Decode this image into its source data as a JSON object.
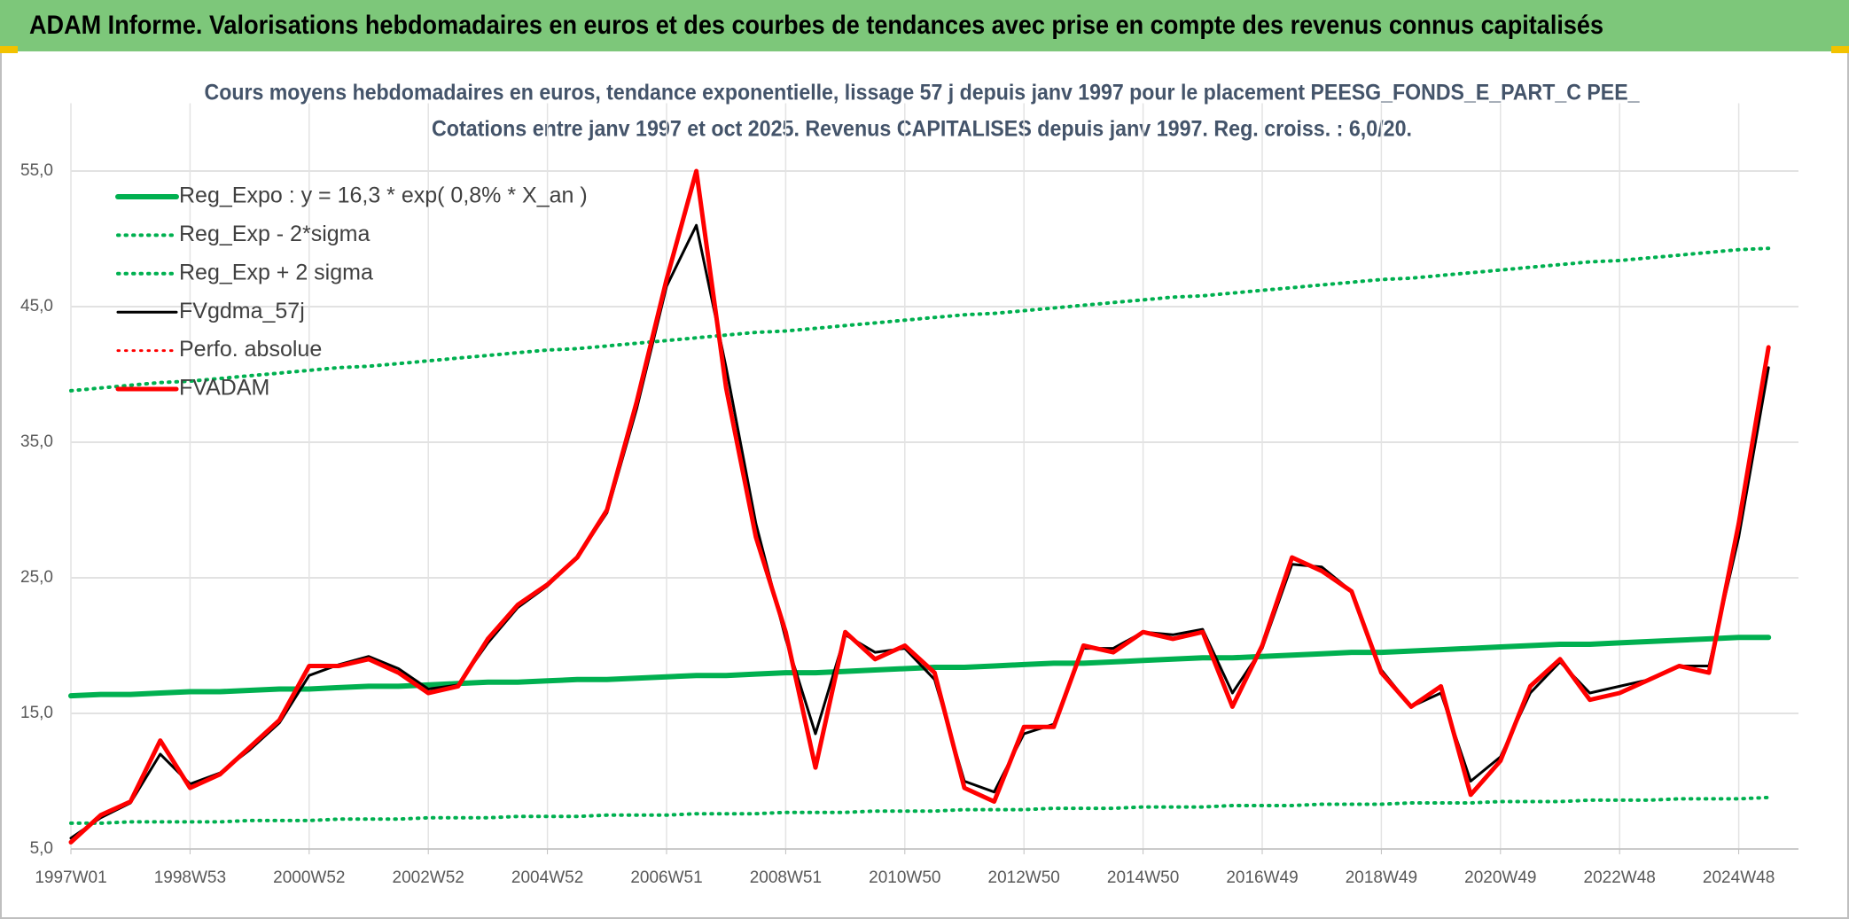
{
  "chart_data": {
    "type": "line",
    "title": "ADAM Informe. Valorisations hebdomadaires en euros et des courbes de tendances avec prise en compte des revenus connus capitalisés",
    "subtitle": [
      "Cours moyens hebdomadaires en euros, tendance exponentielle, lissage 57 j depuis janv 1997 pour le placement PEESG_FONDS_E_PART_C PEE_",
      "Cotations entre janv 1997 et oct 2025. Revenus CAPITALISES depuis janv 1997. Reg. croiss. : 6,0/20."
    ],
    "categories": [
      "1997W01",
      null,
      null,
      null,
      "1998W53",
      null,
      null,
      null,
      "2000W52",
      null,
      null,
      null,
      "2002W52",
      null,
      null,
      null,
      "2004W52",
      null,
      null,
      null,
      "2006W51",
      null,
      null,
      null,
      "2008W51",
      null,
      null,
      null,
      "2010W50",
      null,
      null,
      null,
      "2012W50",
      null,
      null,
      null,
      "2014W50",
      null,
      null,
      null,
      "2016W49",
      null,
      null,
      null,
      "2018W49",
      null,
      null,
      null,
      "2020W49",
      null,
      null,
      null,
      "2022W48",
      null,
      null,
      null,
      "2024W48",
      null
    ],
    "ylim": [
      5,
      60
    ],
    "yticks": [
      {
        "value": 5,
        "label": "5,0"
      },
      {
        "value": 15,
        "label": "15,0"
      },
      {
        "value": 25,
        "label": "25,0"
      },
      {
        "value": 35,
        "label": "35,0"
      },
      {
        "value": 45,
        "label": "45,0"
      },
      {
        "value": 55,
        "label": "55,0"
      }
    ],
    "grid": true,
    "legend": "top-left",
    "series": [
      {
        "name": "Reg_Expo : y = 16,3 * exp( 0,8% *  X_an )",
        "color": "#00b050",
        "style": "solid",
        "values": [
          16.3,
          16.4,
          16.4,
          16.5,
          16.6,
          16.6,
          16.7,
          16.8,
          16.8,
          16.9,
          17.0,
          17.0,
          17.1,
          17.2,
          17.3,
          17.3,
          17.4,
          17.5,
          17.5,
          17.6,
          17.7,
          17.8,
          17.8,
          17.9,
          18.0,
          18.0,
          18.1,
          18.2,
          18.3,
          18.4,
          18.4,
          18.5,
          18.6,
          18.7,
          18.7,
          18.8,
          18.9,
          19.0,
          19.1,
          19.1,
          19.2,
          19.3,
          19.4,
          19.5,
          19.5,
          19.6,
          19.7,
          19.8,
          19.9,
          20.0,
          20.1,
          20.1,
          20.2,
          20.3,
          20.4,
          20.5,
          20.6,
          20.6
        ]
      },
      {
        "name": "Reg_Exp - 2*sigma",
        "color": "#00b050",
        "style": "dotted",
        "values": [
          6.9,
          6.9,
          7.0,
          7.0,
          7.0,
          7.0,
          7.1,
          7.1,
          7.1,
          7.2,
          7.2,
          7.2,
          7.3,
          7.3,
          7.3,
          7.4,
          7.4,
          7.4,
          7.5,
          7.5,
          7.5,
          7.6,
          7.6,
          7.6,
          7.7,
          7.7,
          7.7,
          7.8,
          7.8,
          7.8,
          7.9,
          7.9,
          7.9,
          8.0,
          8.0,
          8.0,
          8.1,
          8.1,
          8.1,
          8.2,
          8.2,
          8.2,
          8.3,
          8.3,
          8.3,
          8.4,
          8.4,
          8.4,
          8.5,
          8.5,
          8.5,
          8.6,
          8.6,
          8.6,
          8.7,
          8.7,
          8.7,
          8.8
        ]
      },
      {
        "name": "Reg_Exp + 2 sigma",
        "color": "#00b050",
        "style": "dotted",
        "values": [
          38.8,
          39.0,
          39.2,
          39.4,
          39.5,
          39.7,
          39.9,
          40.1,
          40.3,
          40.5,
          40.6,
          40.8,
          41.0,
          41.2,
          41.4,
          41.6,
          41.8,
          41.9,
          42.1,
          42.3,
          42.5,
          42.7,
          42.9,
          43.1,
          43.2,
          43.4,
          43.6,
          43.8,
          44.0,
          44.2,
          44.4,
          44.5,
          44.7,
          44.9,
          45.1,
          45.3,
          45.5,
          45.7,
          45.8,
          46.0,
          46.2,
          46.4,
          46.6,
          46.8,
          47.0,
          47.1,
          47.3,
          47.5,
          47.7,
          47.9,
          48.1,
          48.3,
          48.4,
          48.6,
          48.8,
          49.0,
          49.2,
          49.3
        ]
      },
      {
        "name": "FVgdma_57j",
        "color": "#000000",
        "style": "solid",
        "values": [
          5.8,
          7.3,
          8.4,
          12.0,
          9.8,
          10.6,
          12.3,
          14.3,
          17.8,
          18.6,
          19.2,
          18.3,
          16.8,
          17.1,
          20.2,
          22.8,
          24.4,
          26.5,
          29.8,
          37.5,
          46.5,
          51.0,
          40.5,
          29.0,
          20.5,
          13.5,
          20.8,
          19.5,
          19.8,
          17.5,
          10.0,
          9.2,
          13.5,
          14.2,
          19.8,
          19.8,
          21.0,
          20.8,
          21.2,
          16.5,
          19.8,
          26.0,
          25.8,
          24.0,
          18.2,
          15.5,
          16.5,
          10.0,
          11.8,
          16.5,
          18.8,
          16.5,
          17.0,
          17.5,
          18.5,
          18.5,
          28.0,
          40.5
        ]
      },
      {
        "name": "Perfo. absolue",
        "color": "#ff0000",
        "style": "dotted",
        "values": [
          null,
          null,
          null,
          null,
          null,
          null,
          null,
          null,
          null,
          null,
          null,
          null,
          null,
          null,
          null,
          null,
          null,
          null,
          null,
          null,
          null,
          null,
          null,
          null,
          null,
          null,
          null,
          null,
          null,
          null,
          null,
          null,
          null,
          null,
          null,
          null,
          null,
          null,
          null,
          null,
          null,
          null,
          null,
          null,
          null,
          null,
          null,
          null,
          null,
          null,
          null,
          null,
          null,
          null,
          null,
          null,
          null,
          null
        ]
      },
      {
        "name": "FVADAM",
        "color": "#ff0000",
        "style": "solid",
        "values": [
          5.5,
          7.5,
          8.5,
          13.0,
          9.5,
          10.5,
          12.5,
          14.5,
          18.5,
          18.5,
          19.0,
          18.0,
          16.5,
          17.0,
          20.5,
          23.0,
          24.5,
          26.5,
          30.0,
          38.0,
          47.0,
          55.0,
          39.0,
          28.0,
          21.0,
          11.0,
          21.0,
          19.0,
          20.0,
          18.0,
          9.5,
          8.5,
          14.0,
          14.0,
          20.0,
          19.5,
          21.0,
          20.5,
          21.0,
          15.5,
          20.0,
          26.5,
          25.5,
          24.0,
          18.0,
          15.5,
          17.0,
          9.0,
          11.5,
          17.0,
          19.0,
          16.0,
          16.5,
          17.5,
          18.5,
          18.0,
          29.0,
          42.0
        ]
      }
    ]
  }
}
